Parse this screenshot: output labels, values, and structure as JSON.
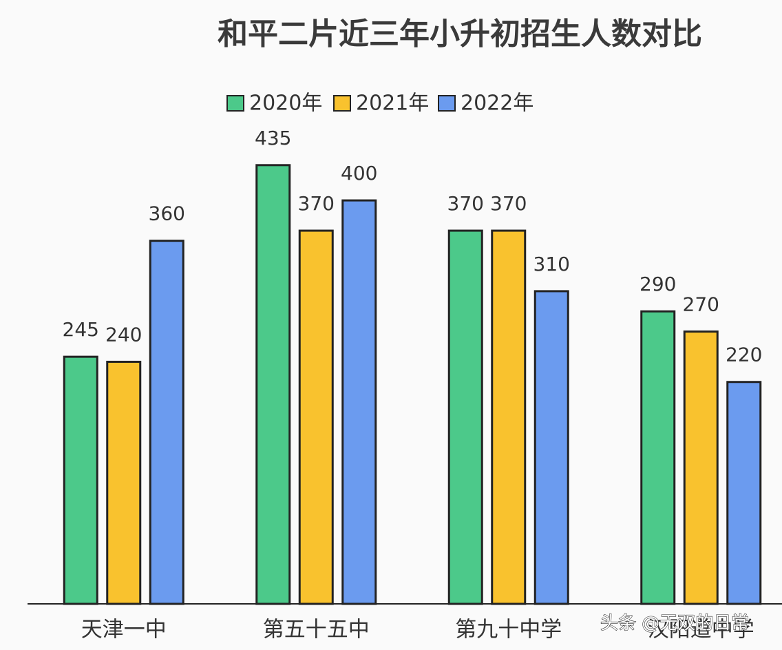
{
  "chart_data": {
    "type": "bar",
    "title": "和平二片近三年小升初招生人数对比",
    "categories": [
      "天津一中",
      "第五十五中",
      "第九十中学",
      "汉阳道中学"
    ],
    "series": [
      {
        "name": "2020年",
        "color": "#4cc98a",
        "values": [
          245,
          435,
          370,
          290
        ]
      },
      {
        "name": "2021年",
        "color": "#f9c22e",
        "values": [
          240,
          370,
          370,
          270
        ]
      },
      {
        "name": "2022年",
        "color": "#6b9bef",
        "values": [
          360,
          400,
          310,
          220
        ]
      }
    ],
    "ylim": [
      0,
      540
    ],
    "grid": false,
    "legend": "top"
  },
  "watermark": "头条 @无双的日常"
}
